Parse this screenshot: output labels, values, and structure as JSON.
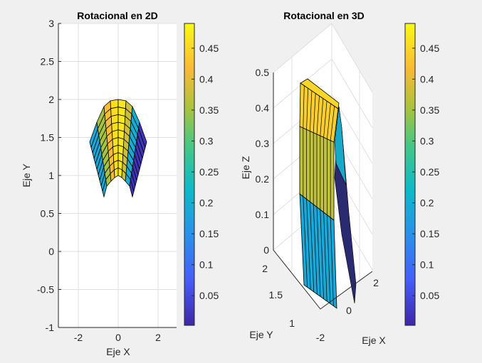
{
  "chart_data": [
    {
      "type": "surface-2d",
      "title": "Rotacional en 2D",
      "xlabel": "Eje X",
      "ylabel": "Eje Y",
      "xlim": [
        -3,
        3
      ],
      "ylim": [
        -1,
        3
      ],
      "xticks": [
        "-2",
        "0",
        "2"
      ],
      "yticks": [
        "-1",
        "-0.5",
        "0",
        "0.5",
        "1",
        "1.5",
        "2",
        "2.5",
        "3"
      ],
      "grid": true,
      "column_values": [
        0.19,
        0.35,
        0.42,
        0.46,
        0.47,
        0.38,
        0.2,
        0.02
      ],
      "colorbar": {
        "limits": [
          0.002,
          0.49
        ],
        "ticks": [
          "0.05",
          "0.1",
          "0.15",
          "0.2",
          "0.25",
          "0.3",
          "0.35",
          "0.4",
          "0.45"
        ]
      }
    },
    {
      "type": "surface-3d",
      "title": "Rotacional en 3D",
      "xlabel": "Eje X",
      "ylabel": "Eje Y",
      "zlabel": "Eje Z",
      "zlim": [
        0,
        0.5
      ],
      "xticks": [
        "-2",
        "0",
        "2"
      ],
      "yticks": [
        "1",
        "1.5",
        "2"
      ],
      "zticks": [
        "0",
        "0.1",
        "0.2",
        "0.3",
        "0.4",
        "0.5"
      ],
      "grid": true,
      "band_values": [
        0.44,
        0.37,
        0.19
      ],
      "colorbar": {
        "limits": [
          0.002,
          0.49
        ],
        "ticks": [
          "0.05",
          "0.1",
          "0.15",
          "0.2",
          "0.25",
          "0.3",
          "0.35",
          "0.4",
          "0.45"
        ]
      }
    }
  ]
}
